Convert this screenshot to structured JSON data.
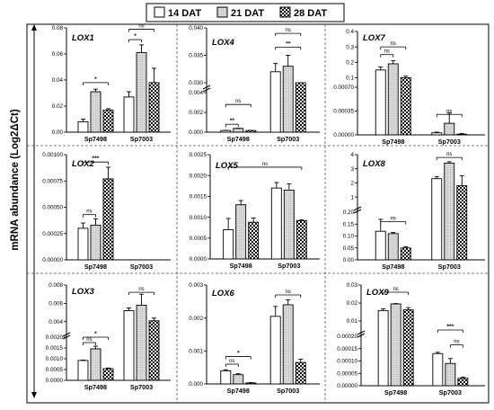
{
  "legend": {
    "items": [
      {
        "label": "14 DAT",
        "pattern": "white"
      },
      {
        "label": "21 DAT",
        "pattern": "lightgray"
      },
      {
        "label": "28 DAT",
        "pattern": "checker"
      }
    ]
  },
  "y_axis_label": "mRNA abundance (Log2ΔCt)",
  "colors": {
    "white": "#ffffff",
    "lightgray": "#d9d9d9",
    "checker_dark": "#000000",
    "checker_light": "#ffffff"
  },
  "chart_data": [
    {
      "type": "bar",
      "title": "LOX1",
      "categories": [
        "Sp7498",
        "Sp7003"
      ],
      "series": [
        {
          "name": "14 DAT",
          "values": [
            0.008,
            0.027
          ],
          "errors": [
            0.002,
            0.004
          ]
        },
        {
          "name": "21 DAT",
          "values": [
            0.031,
            0.061
          ],
          "errors": [
            0.002,
            0.006
          ]
        },
        {
          "name": "28 DAT",
          "values": [
            0.017,
            0.038
          ],
          "errors": [
            0.001,
            0.011
          ]
        }
      ],
      "ylim": [
        0,
        0.08
      ],
      "yticks": [
        "0.00",
        "0.02",
        "0.04",
        "0.06",
        "0.08"
      ],
      "annotations": [
        {
          "category": 0,
          "from": 0,
          "to": 2,
          "text": "*",
          "level": 0.038
        },
        {
          "category": 1,
          "from": 0,
          "to": 1,
          "text": "*",
          "level": 0.071
        },
        {
          "category": 1,
          "from": 0,
          "to": 2,
          "text": "ns",
          "level": 0.079
        }
      ]
    },
    {
      "type": "bar",
      "title": "LOX4",
      "categories": [
        "Sp7498",
        "Sp7003"
      ],
      "series": [
        {
          "name": "14 DAT",
          "values": [
            0.00017,
            0.032
          ],
          "errors": [
            2e-05,
            0.0015
          ]
        },
        {
          "name": "21 DAT",
          "values": [
            0.00038,
            0.033
          ],
          "errors": [
            1e-05,
            0.002
          ]
        },
        {
          "name": "28 DAT",
          "values": [
            0.00017,
            0.0296
          ],
          "errors": [
            1e-05,
            0.0003
          ]
        }
      ],
      "yticks": [
        "0.000",
        "0.002",
        "0.004",
        "0.030",
        "0.035",
        "0.040"
      ],
      "annotations": [
        {
          "category": 0,
          "from": 0,
          "to": 1,
          "text": "**",
          "level": 0.0008
        },
        {
          "category": 0,
          "from": 0,
          "to": 2,
          "text": "ns",
          "level": 0.0028
        },
        {
          "category": 1,
          "from": 0,
          "to": 2,
          "text": "**",
          "level": 0.0365
        },
        {
          "category": 1,
          "from": 0,
          "to": 2,
          "text": "ns",
          "level": 0.039
        }
      ]
    },
    {
      "type": "bar",
      "title": "LOX7",
      "categories": [
        "Sp7498",
        "Sp7003"
      ],
      "series": [
        {
          "name": "14 DAT",
          "values": [
            0.15,
            3e-05
          ],
          "errors": [
            0.02,
            1e-05
          ]
        },
        {
          "name": "21 DAT",
          "values": [
            0.19,
            0.00017
          ],
          "errors": [
            0.02,
            0.00015
          ]
        },
        {
          "name": "28 DAT",
          "values": [
            0.1,
            1e-05
          ],
          "errors": [
            0.01,
            1e-05
          ]
        }
      ],
      "yticks": [
        "0.00000",
        "0.00035",
        "0.00070",
        "0.1",
        "0.2",
        "0.3",
        "0.4"
      ],
      "annotations": [
        {
          "category": 0,
          "from": 0,
          "to": 1,
          "text": "ns",
          "level": 0.25
        },
        {
          "category": 0,
          "from": 0,
          "to": 2,
          "text": "ns",
          "level": 0.3
        },
        {
          "category": 1,
          "from": 0,
          "to": 2,
          "text": "ns",
          "level": 0.0003
        }
      ]
    },
    {
      "type": "bar",
      "title": "LOX2",
      "categories": [
        "Sp7498",
        "Sp7003"
      ],
      "series": [
        {
          "name": "14 DAT",
          "values": [
            0.0003,
            0
          ],
          "errors": [
            5e-05,
            0
          ]
        },
        {
          "name": "21 DAT",
          "values": [
            0.00033,
            0
          ],
          "errors": [
            6e-05,
            0
          ]
        },
        {
          "name": "28 DAT",
          "values": [
            0.00077,
            0
          ],
          "errors": [
            0.00011,
            0
          ]
        }
      ],
      "ylim": [
        0,
        0.001
      ],
      "yticks": [
        "0.00000",
        "0.00025",
        "0.00050",
        "0.00075",
        "0.00100"
      ],
      "annotations": [
        {
          "category": 0,
          "from": 0,
          "to": 2,
          "text": "***",
          "level": 0.00093
        },
        {
          "category": 0,
          "from": 0,
          "to": 1,
          "text": "ns",
          "level": 0.00043
        }
      ]
    },
    {
      "type": "bar",
      "title": "LOX5",
      "categories": [
        "Sp7498",
        "Sp7003"
      ],
      "series": [
        {
          "name": "14 DAT",
          "values": [
            0.0007,
            0.0017
          ],
          "errors": [
            0.00027,
            0.00013
          ]
        },
        {
          "name": "21 DAT",
          "values": [
            0.0013,
            0.00165
          ],
          "errors": [
            0.0001,
            0.00015
          ]
        },
        {
          "name": "28 DAT",
          "values": [
            0.00088,
            0.00092
          ],
          "errors": [
            0.0001,
            2e-05
          ]
        }
      ],
      "ylim": [
        0,
        0.0025
      ],
      "yticks": [
        "0.0000",
        "0.0005",
        "0.0010",
        "0.0015",
        "0.0020",
        "0.0025"
      ],
      "annotations": [
        {
          "category": "all",
          "text": "ns",
          "level": 0.0022
        }
      ]
    },
    {
      "type": "bar",
      "title": "LOX8",
      "categories": [
        "Sp7498",
        "Sp7003"
      ],
      "series": [
        {
          "name": "14 DAT",
          "values": [
            0.12,
            2.3
          ],
          "errors": [
            0.05,
            0.15
          ]
        },
        {
          "name": "21 DAT",
          "values": [
            0.11,
            3.4
          ],
          "errors": [
            0.005,
            0.1
          ]
        },
        {
          "name": "28 DAT",
          "values": [
            0.05,
            1.8
          ],
          "errors": [
            0.005,
            0.7
          ]
        }
      ],
      "yticks": [
        "0.00",
        "0.05",
        "0.10",
        "0.15",
        "0.20",
        "1",
        "2",
        "3",
        "4"
      ],
      "annotations": [
        {
          "category": 0,
          "from": 0,
          "to": 2,
          "text": "ns",
          "level": 0.16
        },
        {
          "category": 1,
          "from": 0,
          "to": 2,
          "text": "ns",
          "level": 3.8
        }
      ]
    },
    {
      "type": "bar",
      "title": "LOX3",
      "categories": [
        "Sp7498",
        "Sp7003"
      ],
      "series": [
        {
          "name": "14 DAT",
          "values": [
            0.00092,
            0.0052
          ],
          "errors": [
            2e-05,
            0.0003
          ]
        },
        {
          "name": "21 DAT",
          "values": [
            0.00146,
            0.0058
          ],
          "errors": [
            0.00012,
            0.0012
          ]
        },
        {
          "name": "28 DAT",
          "values": [
            0.00054,
            0.0041
          ],
          "errors": [
            3e-05,
            0.0003
          ]
        }
      ],
      "yticks": [
        "0.0000",
        "0.0005",
        "0.0010",
        "0.0015",
        "0.0020",
        "0.004",
        "0.006",
        "0.008"
      ],
      "annotations": [
        {
          "category": 0,
          "from": 0,
          "to": 2,
          "text": "*",
          "level": 0.002
        },
        {
          "category": 0,
          "from": 0,
          "to": 1,
          "text": "ns",
          "level": 0.00175
        },
        {
          "category": 1,
          "from": 0,
          "to": 2,
          "text": "ns",
          "level": 0.0072
        }
      ]
    },
    {
      "type": "bar",
      "title": "LOX6",
      "categories": [
        "Sp7498",
        "Sp7003"
      ],
      "series": [
        {
          "name": "14 DAT",
          "values": [
            0.0004,
            0.00205
          ],
          "errors": [
            3e-05,
            0.0003
          ]
        },
        {
          "name": "21 DAT",
          "values": [
            0.00028,
            0.0024
          ],
          "errors": [
            3e-05,
            0.00015
          ]
        },
        {
          "name": "28 DAT",
          "values": [
            3e-05,
            0.00065
          ],
          "errors": [
            1e-05,
            0.0001
          ]
        }
      ],
      "ylim": [
        0,
        0.003
      ],
      "yticks": [
        "0.000",
        "0.001",
        "0.002",
        "0.003"
      ],
      "annotations": [
        {
          "category": 0,
          "from": 0,
          "to": 2,
          "text": "*",
          "level": 0.00083
        },
        {
          "category": 0,
          "from": 0,
          "to": 1,
          "text": "ns",
          "level": 0.0006
        },
        {
          "category": 1,
          "from": 0,
          "to": 2,
          "text": "ns",
          "level": 0.0027
        }
      ]
    },
    {
      "type": "bar",
      "title": "LOX9",
      "categories": [
        "Sp7498",
        "Sp7003"
      ],
      "series": [
        {
          "name": "14 DAT",
          "values": [
            0.0158,
            0.00013
          ],
          "errors": [
            0.001,
            5e-06
          ]
        },
        {
          "name": "21 DAT",
          "values": [
            0.0195,
            9e-05
          ],
          "errors": [
            0.0002,
            2e-05
          ]
        },
        {
          "name": "28 DAT",
          "values": [
            0.0162,
            3e-05
          ],
          "errors": [
            0.0012,
            5e-06
          ]
        }
      ],
      "yticks": [
        "0.00000",
        "0.00005",
        "0.00010",
        "0.00015",
        "0.00020",
        "0.01",
        "0.02",
        "0.03"
      ],
      "annotations": [
        {
          "category": 0,
          "from": 0,
          "to": 2,
          "text": "ns",
          "level": 0.026
        },
        {
          "category": 1,
          "from": 0,
          "to": 2,
          "text": "***",
          "level": 0.00021
        },
        {
          "category": 1,
          "from": 1,
          "to": 2,
          "text": "ns",
          "level": 0.000165
        }
      ]
    }
  ]
}
